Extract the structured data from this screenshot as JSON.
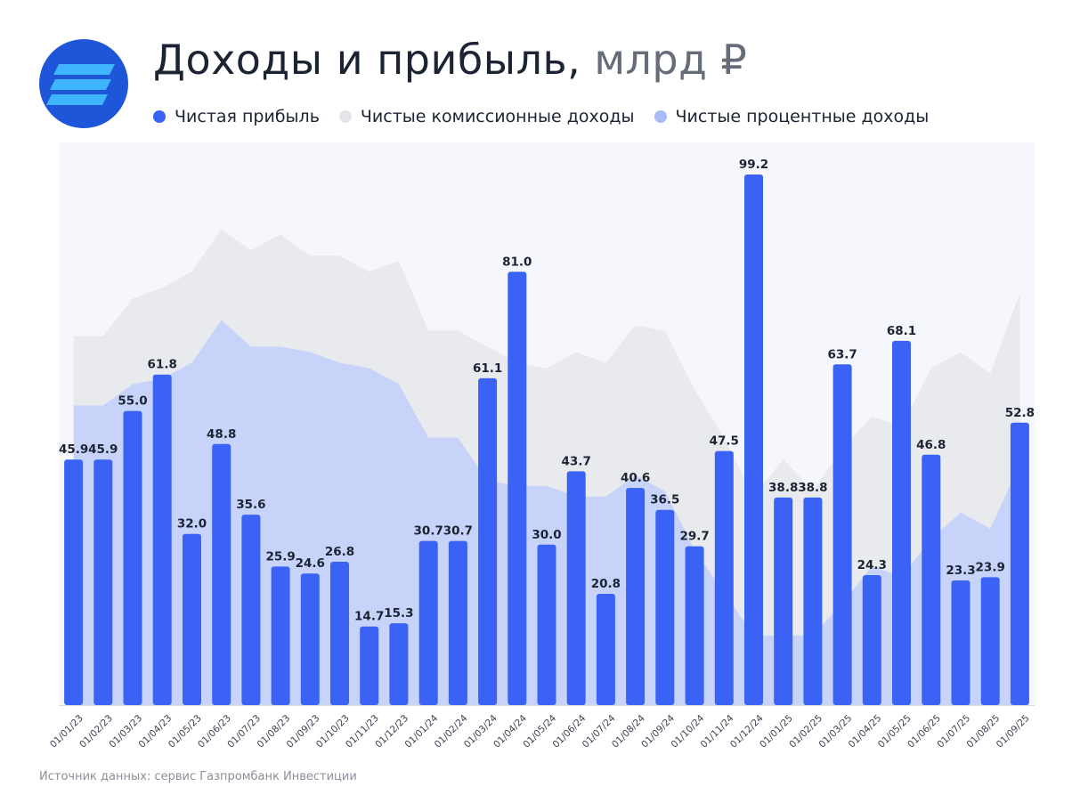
{
  "colors": {
    "net_profit": "#3a63f5",
    "commission": "#e9eaee",
    "interest": "#c4d0fb",
    "plot_bg": "#f5f7fc",
    "logo_bg": "#1d56d9",
    "logo_stripes": "#3fb5ff"
  },
  "header": {
    "logo_icon": "stacked-stripes-icon",
    "title_main": "Доходы и прибыль,",
    "title_unit": "млрд ₽"
  },
  "legend": [
    {
      "label": "Чистая прибыль",
      "color": "#3a63f5"
    },
    {
      "label": "Чистые комиссионные доходы",
      "color": "#e9eaee"
    },
    {
      "label": "Чистые процентные доходы",
      "color": "#c4d0fb"
    }
  ],
  "footer": {
    "source": "Источник данных: сервис  Газпромбанк Инвестиции"
  },
  "chart_data": {
    "type": "bar",
    "title": "Доходы и прибыль, млрд ₽",
    "xlabel": "",
    "ylabel": "",
    "ylim": [
      0,
      110
    ],
    "grid": false,
    "legend_position": "top",
    "categories": [
      "01/01/23",
      "01/02/23",
      "01/03/23",
      "01/04/23",
      "01/05/23",
      "01/06/23",
      "01/07/23",
      "01/08/23",
      "01/09/23",
      "01/10/23",
      "01/11/23",
      "01/12/23",
      "01/01/24",
      "01/02/24",
      "01/03/24",
      "01/04/24",
      "01/05/24",
      "01/06/24",
      "01/07/24",
      "01/08/24",
      "01/09/24",
      "01/10/24",
      "01/11/24",
      "01/12/24",
      "01/01/25",
      "01/02/25",
      "01/03/25",
      "01/04/25",
      "01/05/25",
      "01/06/25",
      "01/07/25",
      "01/08/25",
      "01/09/25"
    ],
    "series": [
      {
        "name": "Чистая прибыль",
        "type": "bar",
        "values": [
          45.9,
          45.9,
          55.0,
          61.8,
          32.0,
          48.8,
          35.6,
          25.9,
          24.6,
          26.8,
          14.7,
          15.3,
          30.7,
          30.7,
          61.1,
          81.0,
          30.0,
          43.7,
          20.8,
          40.6,
          36.5,
          29.7,
          47.5,
          99.2,
          38.8,
          38.8,
          63.7,
          24.3,
          68.1,
          46.8,
          23.3,
          23.9,
          52.8
        ],
        "labels": [
          "45.9",
          "45.9",
          "55.0",
          "61.8",
          "32.0",
          "48.8",
          "35.6",
          "25.9",
          "24.6",
          "26.8",
          "14.7",
          "15.3",
          "30.7",
          "30.7",
          "61.1",
          "81.0",
          "30.0",
          "43.7",
          "20.8",
          "40.6",
          "36.5",
          "29.7",
          "47.5",
          "99.2",
          "38.8",
          "38.8",
          "63.7",
          "24.3",
          "68.1",
          "46.8",
          "23.3",
          "23.9",
          "52.8"
        ]
      },
      {
        "name": "Чистые комиссионные доходы",
        "type": "area",
        "values": [
          69,
          69,
          76,
          78,
          81,
          89,
          85,
          88,
          84,
          84,
          81,
          83,
          70,
          70,
          67,
          64,
          63,
          66,
          64,
          71,
          70,
          59,
          50,
          39,
          46,
          40,
          48,
          54,
          52,
          63,
          66,
          62,
          77
        ]
      },
      {
        "name": "Чистые процентные доходы",
        "type": "area",
        "values": [
          56,
          56,
          60,
          61,
          64,
          72,
          67,
          67,
          66,
          64,
          63,
          60,
          50,
          50,
          42,
          41,
          41,
          39,
          39,
          43,
          40,
          29,
          21,
          13,
          13,
          13,
          19,
          26,
          24,
          31,
          36,
          33,
          45
        ]
      }
    ]
  }
}
